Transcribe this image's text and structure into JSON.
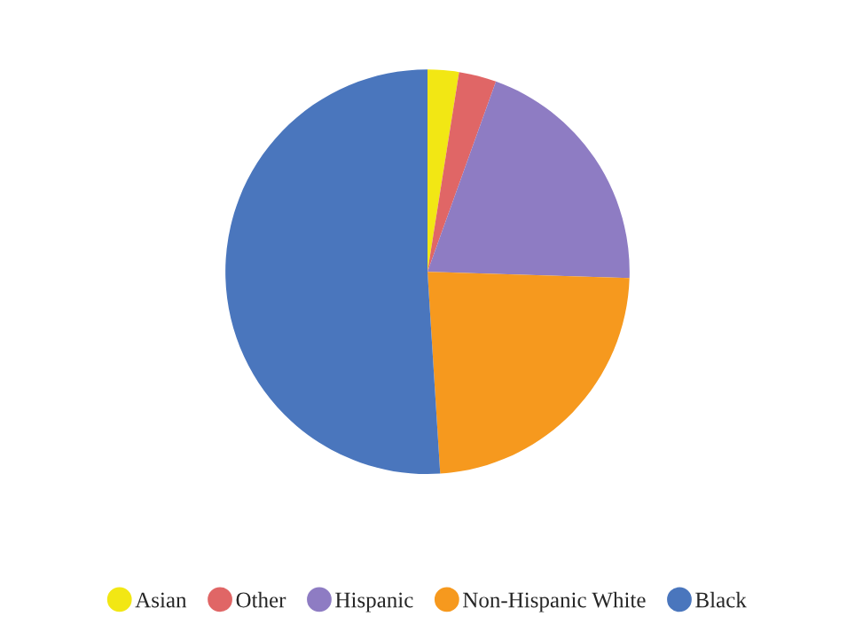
{
  "chart_data": {
    "type": "pie",
    "categories": [
      "Asian",
      "Other",
      "Hispanic",
      "Non-Hispanic White",
      "Black"
    ],
    "values": [
      2.5,
      3,
      20,
      23.5,
      51
    ],
    "colors": [
      "#f2e714",
      "#e06666",
      "#8e7cc3",
      "#f6991e",
      "#4a76bd"
    ],
    "legend": "bottom"
  }
}
